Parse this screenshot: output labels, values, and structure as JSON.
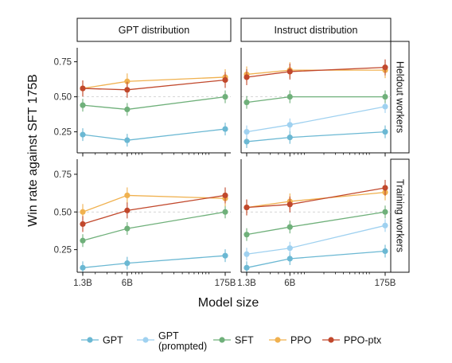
{
  "chart_data": {
    "type": "line",
    "facet_columns": [
      "GPT distribution",
      "Instruct distribution"
    ],
    "facet_rows": [
      "Heldout workers",
      "Training workers"
    ],
    "xlabel": "Model size",
    "ylabel": "Win rate against SFT 175B",
    "x": [
      1.3,
      6,
      175
    ],
    "x_tick_labels": [
      "1.3B",
      "6B",
      "175B"
    ],
    "x_scale": "log",
    "ylim": [
      0.1,
      0.85
    ],
    "y_ticks": [
      0.25,
      0.5,
      0.75
    ],
    "y_tick_labels": [
      "0.25",
      "0.50",
      "0.75"
    ],
    "reference_line": 0.5,
    "legend_position": "bottom",
    "series": [
      {
        "name": "GPT",
        "color": "#6bb8d3"
      },
      {
        "name": "GPT\n(prompted)",
        "color": "#9fd1f0"
      },
      {
        "name": "SFT",
        "color": "#6fb07a"
      },
      {
        "name": "PPO",
        "color": "#f0b14f"
      },
      {
        "name": "PPO-ptx",
        "color": "#c1482c"
      }
    ],
    "panels": [
      {
        "column": "GPT distribution",
        "row": "Heldout workers",
        "values": {
          "GPT": [
            0.23,
            0.19,
            0.27
          ],
          "SFT": [
            0.44,
            0.41,
            0.5
          ],
          "PPO": [
            0.56,
            0.61,
            0.64
          ],
          "PPO-ptx": [
            0.56,
            0.55,
            0.62
          ]
        }
      },
      {
        "column": "Instruct distribution",
        "row": "Heldout workers",
        "values": {
          "GPT": [
            0.18,
            0.21,
            0.25
          ],
          "GPT\n(prompted)": [
            0.25,
            0.3,
            0.43
          ],
          "SFT": [
            0.46,
            0.5,
            0.5
          ],
          "PPO": [
            0.66,
            0.69,
            0.69
          ],
          "PPO-ptx": [
            0.64,
            0.68,
            0.71
          ]
        }
      },
      {
        "column": "GPT distribution",
        "row": "Training workers",
        "values": {
          "GPT": [
            0.13,
            0.16,
            0.21
          ],
          "SFT": [
            0.31,
            0.39,
            0.5
          ],
          "PPO": [
            0.5,
            0.61,
            0.59
          ],
          "PPO-ptx": [
            0.42,
            0.51,
            0.61
          ]
        }
      },
      {
        "column": "Instruct distribution",
        "row": "Training workers",
        "values": {
          "GPT": [
            0.13,
            0.19,
            0.24
          ],
          "GPT\n(prompted)": [
            0.22,
            0.26,
            0.41
          ],
          "SFT": [
            0.35,
            0.4,
            0.5
          ],
          "PPO": [
            0.53,
            0.57,
            0.63
          ],
          "PPO-ptx": [
            0.53,
            0.55,
            0.66
          ]
        }
      }
    ]
  }
}
